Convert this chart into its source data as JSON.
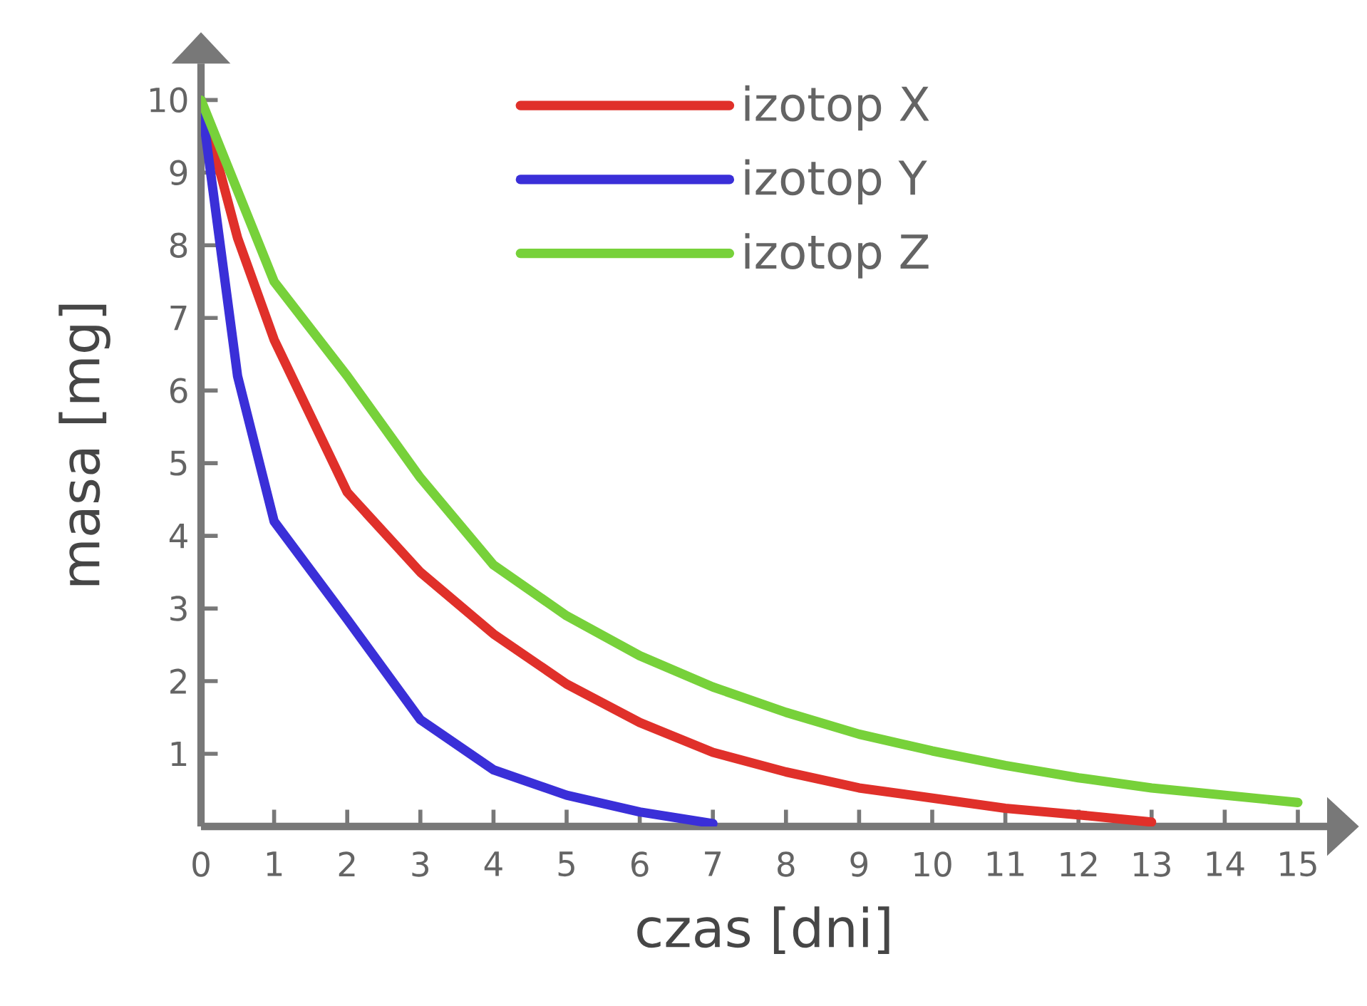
{
  "chart_data": {
    "type": "line",
    "xlabel": "czas [dni]",
    "ylabel": "masa [mg]",
    "xlim": [
      0,
      15.4
    ],
    "ylim": [
      0,
      10.5
    ],
    "xticks": [
      0,
      1,
      2,
      3,
      4,
      5,
      6,
      7,
      8,
      9,
      10,
      11,
      12,
      13,
      14,
      15
    ],
    "yticks": [
      1,
      2,
      3,
      4,
      5,
      6,
      7,
      8,
      9,
      10
    ],
    "legend": "top",
    "marker": "none",
    "line_style": "solid",
    "series": [
      {
        "name": "izotop X",
        "color": "#e0302a",
        "x": [
          0,
          0.5,
          1,
          2,
          3,
          4,
          5,
          6,
          7,
          8,
          9,
          10,
          11,
          12,
          13
        ],
        "values": [
          10,
          8.1,
          6.7,
          4.6,
          3.5,
          2.65,
          1.96,
          1.43,
          1.02,
          0.75,
          0.53,
          0.39,
          0.25,
          0.16,
          0.06
        ]
      },
      {
        "name": "izotop Y",
        "color": "#3a2fd8",
        "x": [
          0,
          0.5,
          1,
          2,
          3,
          4,
          5,
          6,
          7
        ],
        "values": [
          10,
          6.2,
          4.2,
          2.85,
          1.47,
          0.78,
          0.43,
          0.2,
          0.04
        ]
      },
      {
        "name": "izotop Z",
        "color": "#77d13a",
        "x": [
          0,
          1,
          2,
          3,
          4,
          5,
          6,
          7,
          8,
          9,
          10,
          11,
          12,
          13,
          14,
          15
        ],
        "values": [
          10,
          7.5,
          6.2,
          4.8,
          3.6,
          2.9,
          2.35,
          1.92,
          1.57,
          1.27,
          1.04,
          0.84,
          0.67,
          0.53,
          0.43,
          0.33
        ]
      }
    ]
  }
}
